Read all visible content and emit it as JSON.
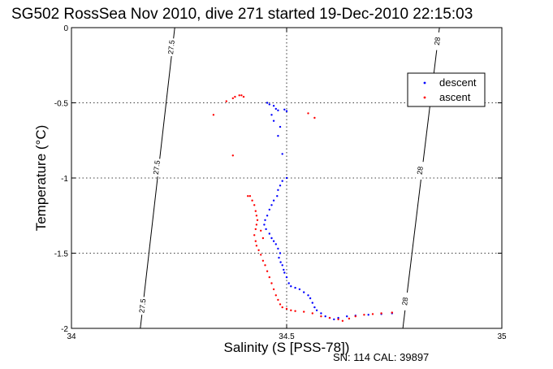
{
  "chart_data": {
    "type": "scatter",
    "title": "SG502 RossSea Nov 2010, dive 271 started 19-Dec-2010 22:15:03",
    "xlabel": "Salinity (S [PSS-78])",
    "ylabel": "Temperature (°C)",
    "xlim": [
      34,
      35
    ],
    "ylim": [
      -2,
      0
    ],
    "xticks": [
      34,
      34.5,
      35
    ],
    "yticks": [
      0,
      -0.5,
      -1,
      -1.5,
      -2
    ],
    "xtick_labels": [
      "34",
      "34.5",
      "35"
    ],
    "ytick_labels": [
      "0",
      "-0.5",
      "-1",
      "-1.5",
      "-2"
    ],
    "grid": true,
    "legend_position": "top-right",
    "footer": "SN: 114  CAL: 39897",
    "contours": [
      {
        "label": "27.5",
        "points": [
          [
            34.16,
            -2.0
          ],
          [
            34.24,
            0.0
          ]
        ],
        "label_positions": [
          [
            34.165,
            -1.85
          ],
          [
            34.198,
            -0.93
          ],
          [
            34.232,
            -0.13
          ]
        ]
      },
      {
        "label": "28",
        "points": [
          [
            34.77,
            -2.0
          ],
          [
            34.855,
            0.0
          ]
        ],
        "label_positions": [
          [
            34.775,
            -1.82
          ],
          [
            34.81,
            -0.95
          ],
          [
            34.85,
            -0.09
          ]
        ]
      }
    ],
    "series": [
      {
        "name": "descent",
        "color": "#0000ff",
        "points": [
          [
            34.455,
            -0.5
          ],
          [
            34.46,
            -0.51
          ],
          [
            34.47,
            -0.52
          ],
          [
            34.475,
            -0.54
          ],
          [
            34.48,
            -0.55
          ],
          [
            34.495,
            -0.545
          ],
          [
            34.5,
            -0.555
          ],
          [
            34.465,
            -0.58
          ],
          [
            34.47,
            -0.62
          ],
          [
            34.485,
            -0.66
          ],
          [
            34.48,
            -0.72
          ],
          [
            34.49,
            -0.84
          ],
          [
            34.5,
            -1.0
          ],
          [
            34.49,
            -1.02
          ],
          [
            34.485,
            -1.05
          ],
          [
            34.48,
            -1.08
          ],
          [
            34.478,
            -1.12
          ],
          [
            34.47,
            -1.15
          ],
          [
            34.465,
            -1.18
          ],
          [
            34.46,
            -1.21
          ],
          [
            34.455,
            -1.25
          ],
          [
            34.45,
            -1.28
          ],
          [
            34.448,
            -1.31
          ],
          [
            34.452,
            -1.34
          ],
          [
            34.46,
            -1.37
          ],
          [
            34.465,
            -1.4
          ],
          [
            34.47,
            -1.42
          ],
          [
            34.475,
            -1.44
          ],
          [
            34.48,
            -1.47
          ],
          [
            34.485,
            -1.5
          ],
          [
            34.482,
            -1.53
          ],
          [
            34.486,
            -1.56
          ],
          [
            34.49,
            -1.58
          ],
          [
            34.493,
            -1.61
          ],
          [
            34.495,
            -1.63
          ],
          [
            34.5,
            -1.66
          ],
          [
            34.505,
            -1.7
          ],
          [
            34.51,
            -1.72
          ],
          [
            34.52,
            -1.73
          ],
          [
            34.53,
            -1.74
          ],
          [
            34.54,
            -1.76
          ],
          [
            34.55,
            -1.78
          ],
          [
            34.555,
            -1.8
          ],
          [
            34.56,
            -1.83
          ],
          [
            34.565,
            -1.86
          ],
          [
            34.57,
            -1.88
          ],
          [
            34.58,
            -1.9
          ],
          [
            34.59,
            -1.92
          ],
          [
            34.6,
            -1.93
          ],
          [
            34.61,
            -1.94
          ],
          [
            34.62,
            -1.93
          ],
          [
            34.64,
            -1.92
          ],
          [
            34.66,
            -1.915
          ],
          [
            34.69,
            -1.91
          ],
          [
            34.72,
            -1.905
          ],
          [
            34.745,
            -1.9
          ]
        ]
      },
      {
        "name": "ascent",
        "color": "#ff0000",
        "points": [
          [
            34.33,
            -0.58
          ],
          [
            34.36,
            -0.49
          ],
          [
            34.375,
            -0.47
          ],
          [
            34.38,
            -0.46
          ],
          [
            34.39,
            -0.45
          ],
          [
            34.395,
            -0.45
          ],
          [
            34.4,
            -0.46
          ],
          [
            34.55,
            -0.57
          ],
          [
            34.565,
            -0.6
          ],
          [
            34.375,
            -0.85
          ],
          [
            34.415,
            -1.12
          ],
          [
            34.42,
            -1.15
          ],
          [
            34.425,
            -1.18
          ],
          [
            34.428,
            -1.22
          ],
          [
            34.43,
            -1.25
          ],
          [
            34.432,
            -1.28
          ],
          [
            34.43,
            -1.31
          ],
          [
            34.428,
            -1.34
          ],
          [
            34.425,
            -1.38
          ],
          [
            34.428,
            -1.42
          ],
          [
            34.43,
            -1.45
          ],
          [
            34.435,
            -1.48
          ],
          [
            34.44,
            -1.51
          ],
          [
            34.445,
            -1.55
          ],
          [
            34.45,
            -1.58
          ],
          [
            34.455,
            -1.62
          ],
          [
            34.46,
            -1.66
          ],
          [
            34.465,
            -1.7
          ],
          [
            34.47,
            -1.74
          ],
          [
            34.475,
            -1.78
          ],
          [
            34.48,
            -1.81
          ],
          [
            34.485,
            -1.84
          ],
          [
            34.49,
            -1.86
          ],
          [
            34.5,
            -1.87
          ],
          [
            34.51,
            -1.88
          ],
          [
            34.52,
            -1.885
          ],
          [
            34.54,
            -1.89
          ],
          [
            34.56,
            -1.9
          ],
          [
            34.58,
            -1.92
          ],
          [
            34.6,
            -1.93
          ],
          [
            34.62,
            -1.94
          ],
          [
            34.63,
            -1.95
          ],
          [
            34.645,
            -1.935
          ],
          [
            34.66,
            -1.92
          ],
          [
            34.68,
            -1.91
          ],
          [
            34.7,
            -1.905
          ],
          [
            34.72,
            -1.9
          ],
          [
            34.745,
            -1.895
          ],
          [
            34.41,
            -1.12
          ],
          [
            34.44,
            -1.35
          ],
          [
            34.445,
            -1.4
          ]
        ]
      }
    ]
  }
}
